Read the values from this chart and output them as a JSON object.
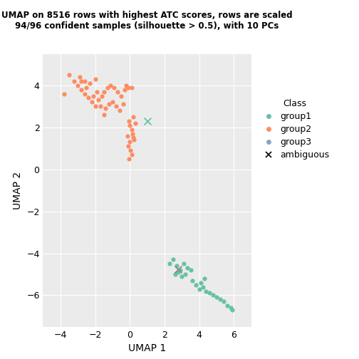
{
  "title": "UMAP on 8516 rows with highest ATC scores, rows are scaled\n94/96 confident samples (silhouette > 0.5), with 10 PCs",
  "xlabel": "UMAP 1",
  "ylabel": "UMAP 2",
  "xlim": [
    -5.0,
    7.0
  ],
  "ylim": [
    -7.5,
    5.5
  ],
  "xticks": [
    -4,
    -2,
    0,
    2,
    4,
    6
  ],
  "yticks": [
    -6,
    -4,
    -2,
    0,
    2,
    4
  ],
  "group1_color": "#66C2A5",
  "group2_color": "#FC8D62",
  "group3_color": "#8DA0CB",
  "ambiguous_color": "#66C2A5",
  "background_color": "#FFFFFF",
  "panel_background": "#EBEBEB",
  "grid_color": "#FFFFFF",
  "group2_points": [
    [
      -3.8,
      3.6
    ],
    [
      -3.5,
      4.5
    ],
    [
      -3.2,
      4.2
    ],
    [
      -2.9,
      4.4
    ],
    [
      -3.0,
      4.0
    ],
    [
      -2.8,
      3.8
    ],
    [
      -2.6,
      4.2
    ],
    [
      -2.5,
      3.9
    ],
    [
      -2.3,
      4.1
    ],
    [
      -2.0,
      4.3
    ],
    [
      -1.9,
      3.7
    ],
    [
      -2.1,
      3.5
    ],
    [
      -2.4,
      3.4
    ],
    [
      -2.2,
      3.2
    ],
    [
      -1.8,
      3.3
    ],
    [
      -1.6,
      3.5
    ],
    [
      -1.5,
      3.7
    ],
    [
      -1.3,
      3.9
    ],
    [
      -1.1,
      4.0
    ],
    [
      -0.9,
      3.9
    ],
    [
      -0.7,
      3.7
    ],
    [
      -0.5,
      3.5
    ],
    [
      -0.3,
      3.8
    ],
    [
      -0.1,
      3.9
    ],
    [
      -1.7,
      3.0
    ],
    [
      -1.4,
      2.9
    ],
    [
      -1.2,
      3.1
    ],
    [
      -1.0,
      3.2
    ],
    [
      -0.8,
      3.0
    ],
    [
      -0.6,
      2.8
    ],
    [
      -0.4,
      3.1
    ],
    [
      -2.6,
      3.6
    ],
    [
      -2.8,
      4.2
    ],
    [
      -2.0,
      3.0
    ],
    [
      -1.5,
      2.6
    ],
    [
      -0.2,
      4.0
    ],
    [
      0.1,
      3.9
    ],
    [
      -0.05,
      2.3
    ],
    [
      0.0,
      2.1
    ],
    [
      0.1,
      1.9
    ],
    [
      0.15,
      1.7
    ],
    [
      0.2,
      1.5
    ],
    [
      0.0,
      1.3
    ],
    [
      -0.1,
      1.1
    ],
    [
      0.05,
      0.9
    ],
    [
      0.1,
      0.7
    ],
    [
      -0.05,
      0.5
    ],
    [
      0.2,
      2.5
    ],
    [
      0.3,
      2.2
    ],
    [
      -0.15,
      1.6
    ],
    [
      0.25,
      1.4
    ]
  ],
  "group1_points": [
    [
      2.3,
      -4.5
    ],
    [
      2.5,
      -4.3
    ],
    [
      2.7,
      -4.6
    ],
    [
      2.9,
      -4.8
    ],
    [
      3.1,
      -4.5
    ],
    [
      3.3,
      -4.7
    ],
    [
      2.8,
      -4.9
    ],
    [
      2.6,
      -5.0
    ],
    [
      3.0,
      -5.1
    ],
    [
      3.2,
      -5.0
    ],
    [
      3.5,
      -4.8
    ],
    [
      3.8,
      -5.5
    ],
    [
      4.0,
      -5.7
    ],
    [
      4.2,
      -5.6
    ],
    [
      4.4,
      -5.8
    ],
    [
      4.6,
      -5.9
    ],
    [
      4.8,
      -6.0
    ],
    [
      5.0,
      -6.1
    ],
    [
      5.2,
      -6.2
    ],
    [
      5.4,
      -6.3
    ],
    [
      5.6,
      -6.5
    ],
    [
      5.8,
      -6.6
    ],
    [
      5.9,
      -6.7
    ],
    [
      3.6,
      -5.3
    ],
    [
      4.1,
      -5.4
    ],
    [
      4.3,
      -5.2
    ]
  ],
  "ambiguous_points": [
    [
      1.0,
      2.3
    ],
    [
      2.8,
      -4.75
    ]
  ],
  "title_fontsize": 8.5,
  "axis_label_fontsize": 10,
  "tick_fontsize": 9,
  "legend_fontsize": 9,
  "point_size": 20
}
